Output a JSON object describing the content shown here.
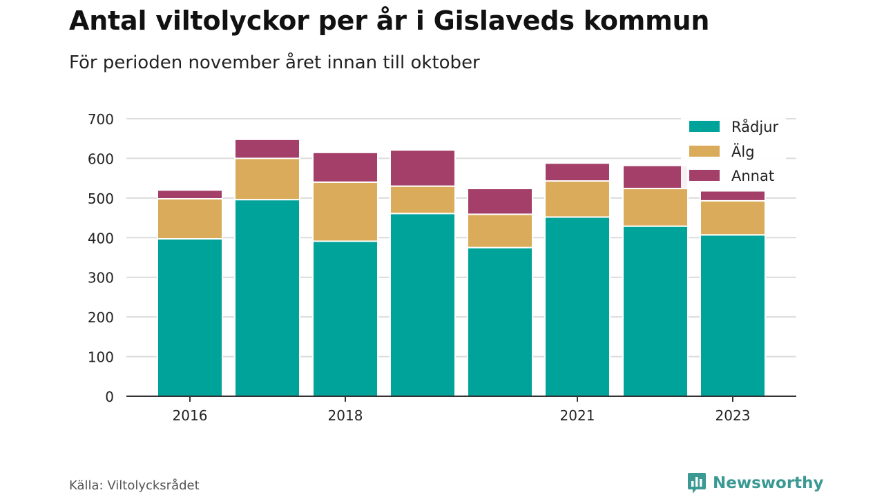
{
  "header": {
    "title": "Antal viltolyckor per år i Gislaveds kommun",
    "subtitle": "För perioden november året innan till oktober"
  },
  "footer": {
    "source": "Källa: Viltolycksrådet",
    "brand": "Newsworthy"
  },
  "colors": {
    "Rådjur": "#00a39a",
    "Älg": "#d9ab5a",
    "Annat": "#a33f68",
    "grid": "#dcdcdc",
    "axis": "#333333",
    "brand": "#3a9a93"
  },
  "chart_data": {
    "type": "bar",
    "stacked": true,
    "title": "Antal viltolyckor per år i Gislaveds kommun",
    "subtitle": "För perioden november året innan till oktober",
    "xlabel": "",
    "ylabel": "",
    "categories": [
      "2016",
      "2017",
      "2018",
      "2019",
      "2020",
      "2021",
      "2022",
      "2023"
    ],
    "xtick_labels": [
      "2016",
      "",
      "2018",
      "",
      "",
      "2021",
      "",
      "2023"
    ],
    "ylim": [
      0,
      700
    ],
    "yticks": [
      0,
      100,
      200,
      300,
      400,
      500,
      600,
      700
    ],
    "grid": true,
    "legend_position": "top-right",
    "series": [
      {
        "name": "Rådjur",
        "values": [
          397,
          496,
          391,
          461,
          375,
          452,
          429,
          407
        ]
      },
      {
        "name": "Älg",
        "values": [
          101,
          104,
          149,
          69,
          84,
          91,
          95,
          86
        ]
      },
      {
        "name": "Annat",
        "values": [
          22,
          48,
          75,
          91,
          65,
          45,
          58,
          25
        ]
      }
    ]
  }
}
